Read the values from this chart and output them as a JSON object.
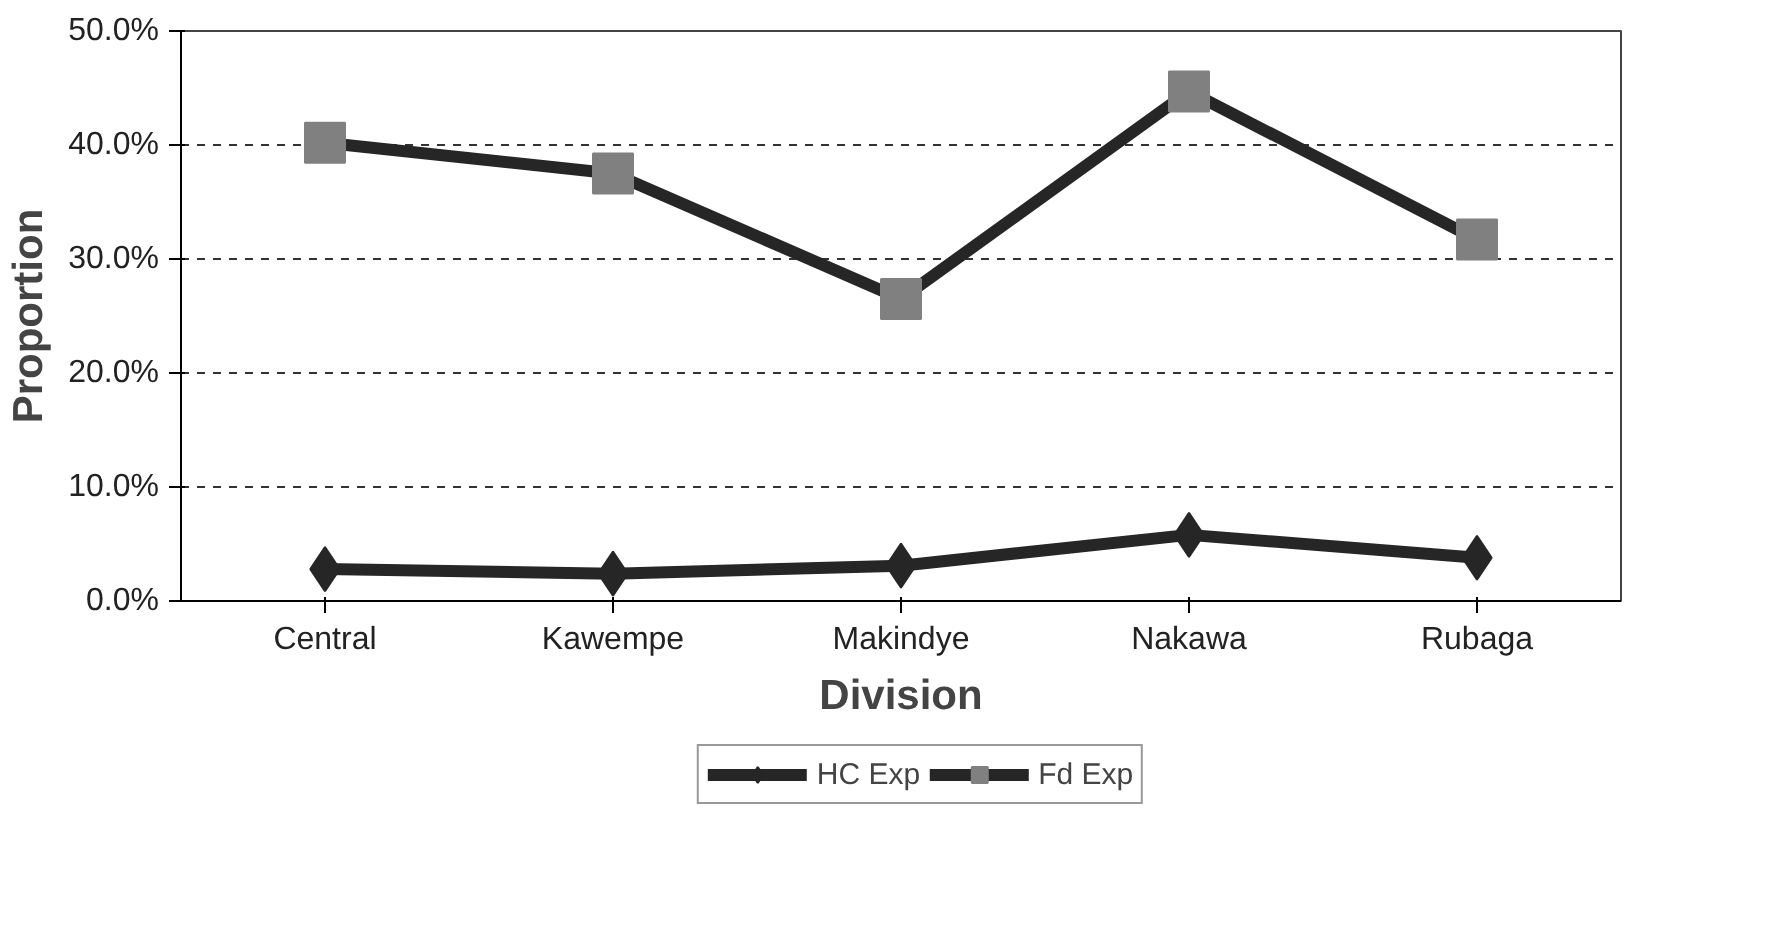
{
  "chart_data": {
    "type": "line",
    "xlabel": "Division",
    "ylabel": "Proportion",
    "categories": [
      "Central",
      "Kawempe",
      "Makindye",
      "Nakawa",
      "Rubaga"
    ],
    "series": [
      {
        "name": "HC Exp",
        "color": "#262626",
        "marker": "diamond",
        "values": [
          2.8,
          2.4,
          3.1,
          5.8,
          3.8
        ]
      },
      {
        "name": "Fd Exp",
        "color": "#808080",
        "marker": "square",
        "values": [
          40.2,
          37.5,
          26.5,
          44.7,
          31.7
        ]
      }
    ],
    "ylim": [
      0,
      50
    ],
    "yticks": [
      {
        "value": 0,
        "label": "0.0%"
      },
      {
        "value": 10,
        "label": "10.0%"
      },
      {
        "value": 20,
        "label": "20.0%"
      },
      {
        "value": 30,
        "label": "30.0%"
      },
      {
        "value": 40,
        "label": "40.0%"
      },
      {
        "value": 50,
        "label": "50.0%"
      }
    ],
    "grid": "y",
    "legend": "bottom",
    "line_style": "solid"
  }
}
